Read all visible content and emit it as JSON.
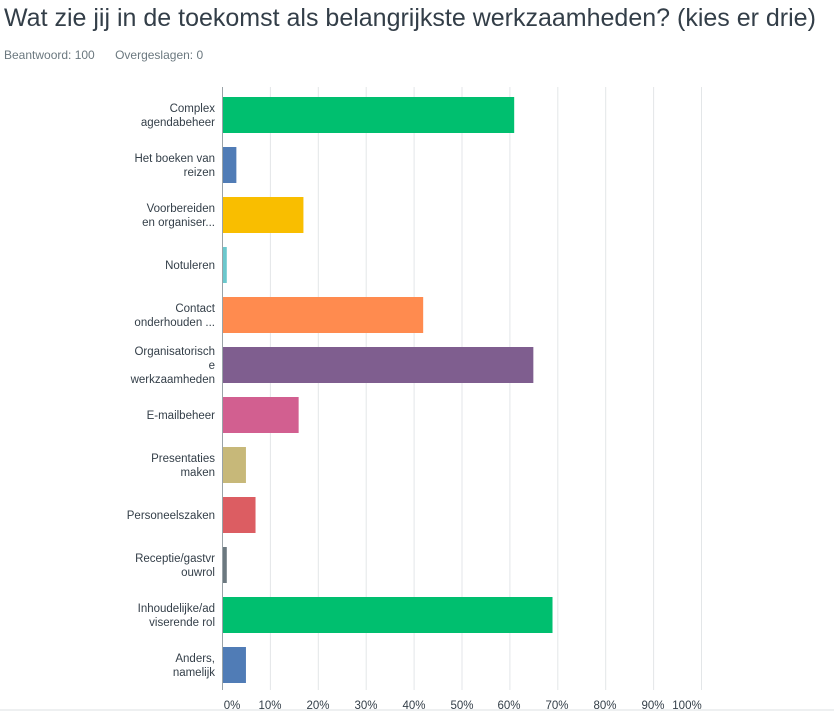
{
  "question": {
    "title": "Wat zie jij in de toekomst als belangrijkste werkzaamheden? (kies er drie)",
    "answered": "Beantwoord: 100",
    "skipped": "Overgeslagen: 0"
  },
  "chart_data": {
    "type": "bar",
    "orientation": "horizontal",
    "title": "Wat zie jij in de toekomst als belangrijkste werkzaamheden? (kies er drie)",
    "categories": [
      [
        "Complex",
        "agendabeheer"
      ],
      [
        "Het boeken van",
        "reizen"
      ],
      [
        "Voorbereiden",
        "en organiser..."
      ],
      [
        "Notuleren"
      ],
      [
        "Contact",
        "onderhouden ..."
      ],
      [
        "Organisatorisch",
        "e",
        "werkzaamheden"
      ],
      [
        "E-mailbeheer"
      ],
      [
        "Presentaties",
        "maken"
      ],
      [
        "Personeelszaken"
      ],
      [
        "Receptie/gastvr",
        "ouwrol"
      ],
      [
        "Inhoudelijke/ad",
        "viserende rol"
      ],
      [
        "Anders,",
        "namelijk"
      ]
    ],
    "values": [
      61,
      3,
      17,
      1,
      42,
      65,
      16,
      5,
      7,
      1,
      69,
      5
    ],
    "colors": [
      "#00bf6f",
      "#507cb6",
      "#f9be00",
      "#6bc8cd",
      "#ff8b4f",
      "#7f5e8f",
      "#d25f90",
      "#c7b879",
      "#dc5d62",
      "#6b787f",
      "#00bf6f",
      "#507cb6"
    ],
    "xlim": [
      0,
      100
    ],
    "xticks": [
      "0%",
      "10%",
      "20%",
      "30%",
      "40%",
      "50%",
      "60%",
      "70%",
      "80%",
      "90%",
      "100%"
    ],
    "grid": true,
    "legend": "none"
  }
}
